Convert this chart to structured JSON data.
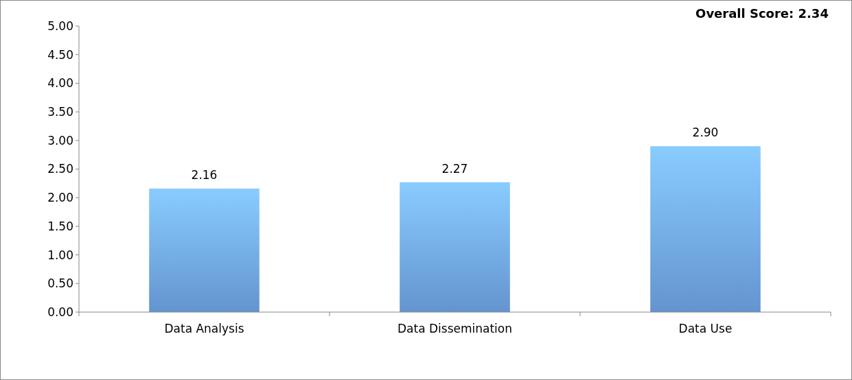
{
  "chart_data": {
    "type": "bar",
    "title": "Overall Score: 2.34",
    "categories": [
      "Data Analysis",
      "Data Dissemination",
      "Data Use"
    ],
    "values": [
      2.16,
      2.27,
      2.9
    ],
    "value_labels": [
      "2.16",
      "2.27",
      "2.90"
    ],
    "color": "#6fa5e6",
    "ylim": [
      0,
      5
    ],
    "yticks": [
      {
        "value": 0,
        "label": "0.00"
      },
      {
        "value": 0.5,
        "label": "0.50"
      },
      {
        "value": 1,
        "label": "1.00"
      },
      {
        "value": 1.5,
        "label": "1.50"
      },
      {
        "value": 2,
        "label": "2.00"
      },
      {
        "value": 2.5,
        "label": "2.50"
      },
      {
        "value": 3,
        "label": "3.00"
      },
      {
        "value": 3.5,
        "label": "3.50"
      },
      {
        "value": 4,
        "label": "4.00"
      },
      {
        "value": 4.5,
        "label": "4.50"
      },
      {
        "value": 5,
        "label": "5.00"
      }
    ],
    "grid": false
  }
}
